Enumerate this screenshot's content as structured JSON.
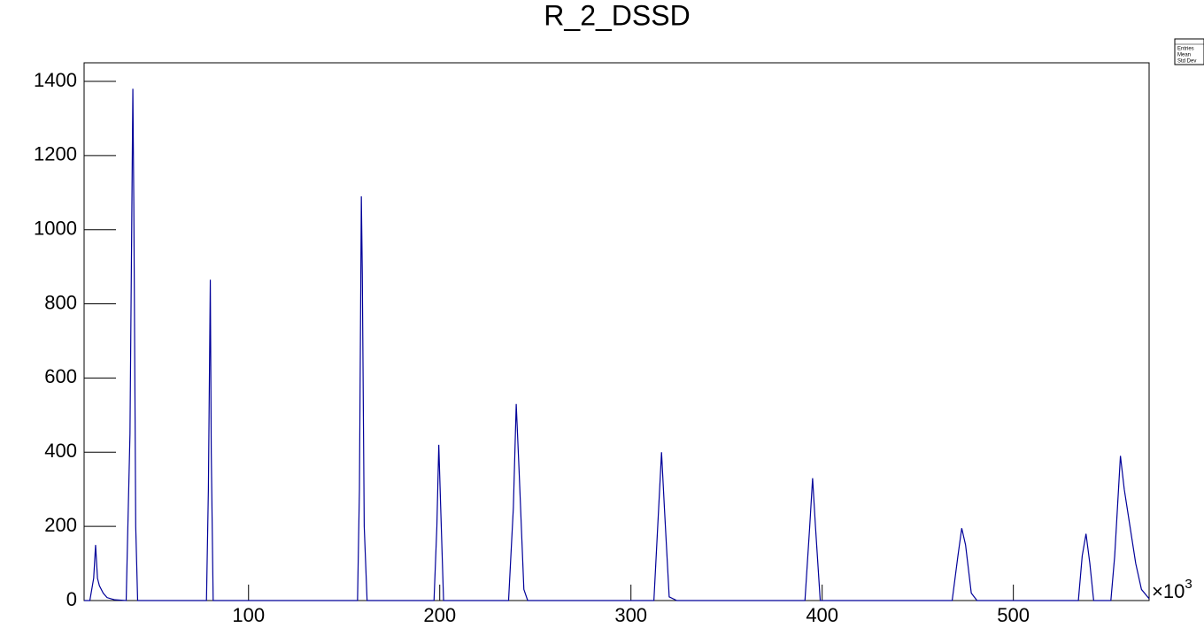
{
  "chart_data": {
    "type": "line",
    "title": "R_2_DSSD",
    "x_multiplier": "×10",
    "x_exponent": "3",
    "stats_labels": [
      "Entries",
      "Mean",
      "Std Dev"
    ],
    "color": "#000099",
    "xlim": [
      14,
      571
    ],
    "ylim": [
      0,
      1450
    ],
    "xticks": [
      100,
      200,
      300,
      400,
      500
    ],
    "yticks": [
      0,
      200,
      400,
      600,
      800,
      1000,
      1200,
      1400
    ],
    "x": [
      14,
      17,
      19,
      20,
      21,
      22,
      24,
      26,
      30,
      36,
      38,
      39.5,
      40,
      41,
      42,
      78,
      79,
      80,
      80.5,
      81.5,
      157,
      158,
      159,
      159.5,
      160.5,
      162,
      197,
      198.5,
      199.5,
      200.5,
      202,
      236,
      238.5,
      240,
      241.5,
      244,
      246,
      312,
      314.5,
      316,
      317.5,
      320,
      324,
      391,
      393.5,
      395,
      396.5,
      399,
      468,
      471,
      473,
      475,
      478,
      481,
      534,
      536,
      538,
      540,
      542,
      551,
      553,
      556,
      558,
      561,
      564,
      567,
      571
    ],
    "values": [
      0,
      0,
      60,
      150,
      60,
      40,
      20,
      8,
      2,
      0,
      450,
      1380,
      1070,
      200,
      0,
      0,
      300,
      865,
      400,
      0,
      0,
      300,
      1090,
      880,
      200,
      0,
      0,
      200,
      420,
      250,
      0,
      0,
      250,
      530,
      350,
      30,
      0,
      0,
      250,
      400,
      250,
      10,
      0,
      0,
      200,
      330,
      200,
      0,
      0,
      120,
      195,
      150,
      20,
      0,
      0,
      120,
      180,
      100,
      0,
      0,
      120,
      390,
      300,
      200,
      100,
      30,
      5
    ]
  }
}
